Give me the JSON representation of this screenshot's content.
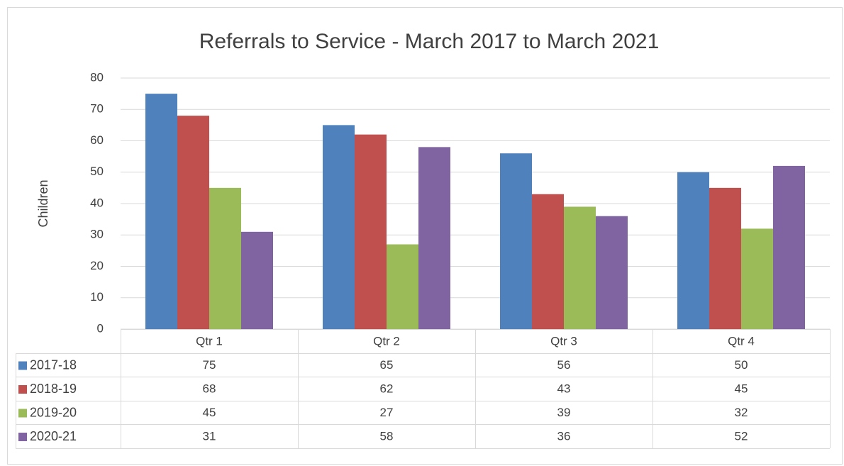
{
  "chart_data": {
    "type": "bar",
    "title": "Referrals to Service - March 2017 to March 2021",
    "y_label": "Children",
    "categories": [
      "Qtr 1",
      "Qtr 2",
      "Qtr 3",
      "Qtr 4"
    ],
    "series": [
      {
        "name": "2017-18",
        "color": "#4f81bd",
        "values": [
          75,
          65,
          56,
          50
        ]
      },
      {
        "name": "2018-19",
        "color": "#c0504d",
        "values": [
          68,
          62,
          43,
          45
        ]
      },
      {
        "name": "2019-20",
        "color": "#9bbb59",
        "values": [
          45,
          27,
          39,
          32
        ]
      },
      {
        "name": "2020-21",
        "color": "#8064a2",
        "values": [
          31,
          58,
          36,
          52
        ]
      }
    ],
    "ylim": [
      0,
      80
    ],
    "yticks": [
      0,
      10,
      20,
      30,
      40,
      50,
      60,
      70,
      80
    ],
    "grid": true
  }
}
